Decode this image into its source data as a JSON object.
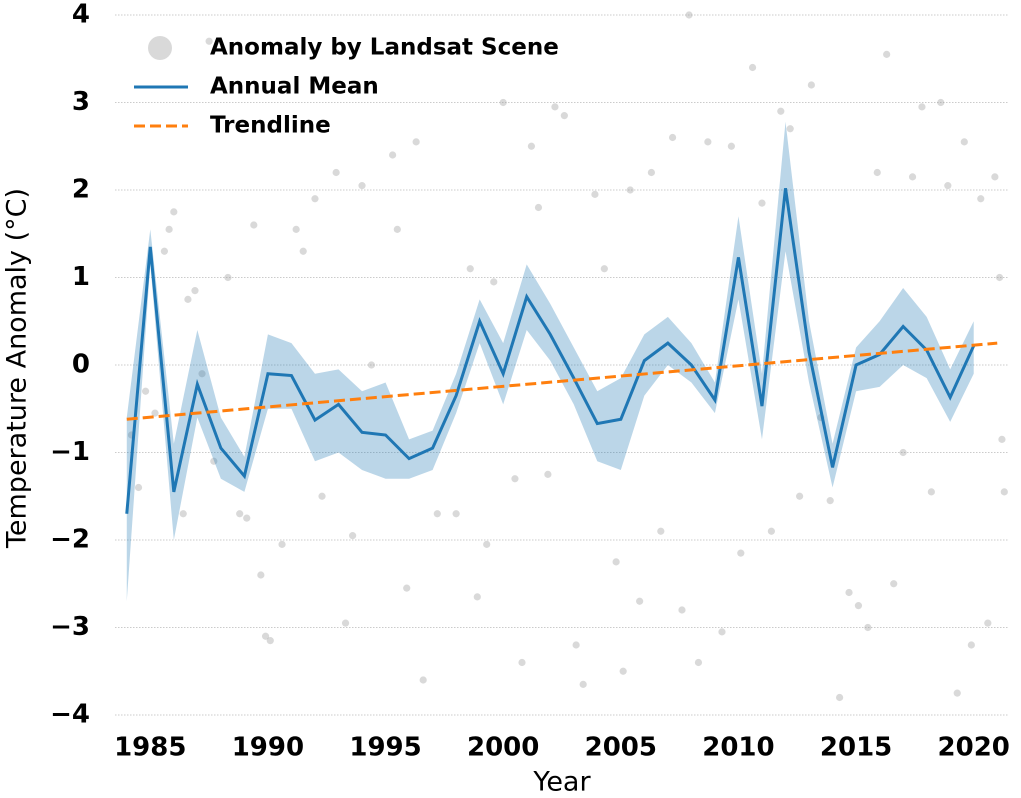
{
  "chart_data": {
    "type": "line",
    "xlabel": "Year",
    "ylabel": "Temperature Anomaly (°C)",
    "xlim": [
      1983.5,
      2021.5
    ],
    "ylim": [
      -4,
      4
    ],
    "xticks": [
      1985,
      1990,
      1995,
      2000,
      2005,
      2010,
      2015,
      2020
    ],
    "yticks": [
      {
        "value": -4,
        "label": "−4"
      },
      {
        "value": -3,
        "label": "−3"
      },
      {
        "value": -2,
        "label": "−2"
      },
      {
        "value": -1,
        "label": "−1"
      },
      0,
      1,
      2,
      3,
      4
    ],
    "grid": true,
    "legend": "upper left",
    "x": [
      1984,
      1985,
      1986,
      1987,
      1988,
      1989,
      1990,
      1991,
      1992,
      1993,
      1994,
      1995,
      1996,
      1997,
      1998,
      1999,
      2000,
      2001,
      2002,
      2003,
      2004,
      2005,
      2006,
      2007,
      2008,
      2009,
      2010,
      2011,
      2012,
      2013,
      2014,
      2015,
      2016,
      2017,
      2018,
      2019,
      2020
    ],
    "series": [
      {
        "name": "Anomaly by Landsat Scene",
        "kind": "scatter",
        "color": "#a0a0a0",
        "x": [
          1984.2,
          1984.5,
          1984.8,
          1985.2,
          1985.6,
          1985.8,
          1986.0,
          1986.4,
          1986.6,
          1986.9,
          1987.2,
          1987.5,
          1987.7,
          1988.3,
          1988.8,
          1989.1,
          1989.4,
          1989.7,
          1989.9,
          1990.1,
          1990.6,
          1991.2,
          1991.5,
          1992.0,
          1992.3,
          1992.9,
          1993.3,
          1993.6,
          1994.0,
          1994.4,
          1995.3,
          1995.5,
          1995.9,
          1996.3,
          1996.6,
          1997.2,
          1998.0,
          1998.6,
          1998.9,
          1999.3,
          1999.6,
          2000.0,
          2000.5,
          2000.8,
          2001.2,
          2001.5,
          2001.9,
          2002.2,
          2002.6,
          2003.1,
          2003.4,
          2003.9,
          2004.3,
          2004.8,
          2005.1,
          2005.4,
          2005.8,
          2006.3,
          2006.7,
          2007.2,
          2007.6,
          2007.9,
          2008.3,
          2008.7,
          2009.3,
          2009.7,
          2010.1,
          2010.6,
          2011.0,
          2011.4,
          2011.8,
          2012.2,
          2012.6,
          2013.1,
          2013.5,
          2013.9,
          2014.3,
          2014.7,
          2015.1,
          2015.5,
          2015.9,
          2016.3,
          2016.6,
          2017.0,
          2017.4,
          2017.8,
          2018.2,
          2018.6,
          2018.9,
          2019.3,
          2019.6,
          2019.9,
          2020.3,
          2020.6,
          2020.9,
          2021.1,
          2021.2,
          2021.3
        ],
        "values": [
          -0.8,
          -1.4,
          -0.3,
          -0.55,
          1.3,
          1.55,
          1.75,
          -1.7,
          0.75,
          0.85,
          -0.1,
          3.7,
          -1.1,
          1.0,
          -1.7,
          -1.75,
          1.6,
          -2.4,
          -3.1,
          -3.15,
          -2.05,
          1.55,
          1.3,
          1.9,
          -1.5,
          2.2,
          -2.95,
          -1.95,
          2.05,
          0.0,
          2.4,
          1.55,
          -2.55,
          2.55,
          -3.6,
          -1.7,
          -1.7,
          1.1,
          -2.65,
          -2.05,
          0.95,
          3.0,
          -1.3,
          -3.4,
          2.5,
          1.8,
          -1.25,
          2.95,
          2.85,
          -3.2,
          -3.65,
          1.95,
          1.1,
          -2.25,
          -3.5,
          2.0,
          -2.7,
          2.2,
          -1.9,
          2.6,
          -2.8,
          4.0,
          -3.4,
          2.55,
          -3.05,
          2.5,
          -2.15,
          3.4,
          1.85,
          -1.9,
          2.9,
          2.7,
          -1.5,
          3.2,
          -0.6,
          -1.55,
          -3.8,
          -2.6,
          -2.75,
          -3.0,
          2.2,
          3.55,
          -2.5,
          -1.0,
          2.15,
          2.95,
          -1.45,
          3.0,
          2.05,
          -3.75,
          2.55,
          -3.2,
          1.9,
          -2.95,
          2.15,
          1.0,
          -0.85,
          -1.45
        ]
      },
      {
        "name": "Annual Mean",
        "kind": "line",
        "color": "#1f77b4",
        "values": [
          -1.7,
          1.35,
          -1.45,
          -0.22,
          -0.95,
          -1.27,
          -0.1,
          -0.12,
          -0.63,
          -0.45,
          -0.77,
          -0.8,
          -1.07,
          -0.95,
          -0.35,
          0.5,
          -0.1,
          0.78,
          0.35,
          -0.15,
          -0.67,
          -0.62,
          0.05,
          0.25,
          0.0,
          -0.4,
          1.23,
          -0.47,
          2.02,
          0.15,
          -1.17,
          0.0,
          0.12,
          0.44,
          0.17,
          -0.37,
          0.22
        ],
        "ci_lower": [
          -2.7,
          1.15,
          -2.0,
          -0.6,
          -1.3,
          -1.45,
          -0.5,
          -0.5,
          -1.1,
          -1.0,
          -1.2,
          -1.3,
          -1.3,
          -1.2,
          -0.55,
          0.25,
          -0.45,
          0.4,
          0.05,
          -0.45,
          -1.1,
          -1.2,
          -0.35,
          0.0,
          -0.2,
          -0.55,
          0.75,
          -0.85,
          1.3,
          -0.2,
          -1.4,
          -0.3,
          -0.25,
          0.0,
          -0.15,
          -0.65,
          -0.1
        ],
        "ci_upper": [
          -0.6,
          1.55,
          -0.9,
          0.4,
          -0.6,
          -1.05,
          0.35,
          0.25,
          -0.1,
          -0.05,
          -0.3,
          -0.2,
          -0.85,
          -0.75,
          -0.1,
          0.75,
          0.25,
          1.15,
          0.7,
          0.2,
          -0.3,
          -0.15,
          0.35,
          0.55,
          0.25,
          -0.2,
          1.7,
          -0.1,
          2.78,
          0.5,
          -0.9,
          0.2,
          0.5,
          0.88,
          0.55,
          -0.05,
          0.5
        ]
      },
      {
        "name": "Trendline",
        "kind": "dashed",
        "color": "#ff7f0e",
        "x": [
          1984,
          2021
        ],
        "values": [
          -0.62,
          0.25
        ]
      }
    ]
  }
}
